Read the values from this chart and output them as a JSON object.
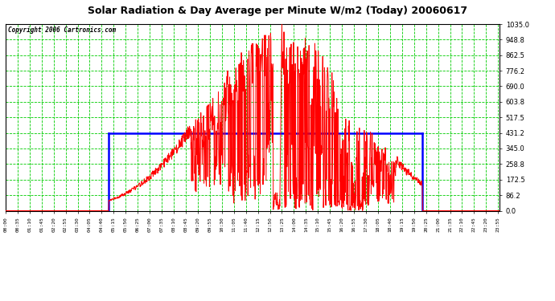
{
  "title": "Solar Radiation & Day Average per Minute W/m2 (Today) 20060617",
  "copyright": "Copyright 2006 Cartronics.com",
  "bg_color": "#ffffff",
  "plot_bg_color": "#ffffff",
  "grid_color": "#00cc00",
  "line_color_red": "#ff0000",
  "line_color_blue": "#0000ff",
  "ymin": 0.0,
  "ymax": 1035.0,
  "yticks": [
    0.0,
    86.2,
    172.5,
    258.8,
    345.0,
    431.2,
    517.5,
    603.8,
    690.0,
    776.2,
    862.5,
    948.8,
    1035.0
  ],
  "total_minutes": 1440,
  "sunrise_minute": 300,
  "sunset_minute": 1215,
  "day_avg": 431.2,
  "peak_minute": 805,
  "peak_value": 1035.0,
  "label_interval": 35
}
